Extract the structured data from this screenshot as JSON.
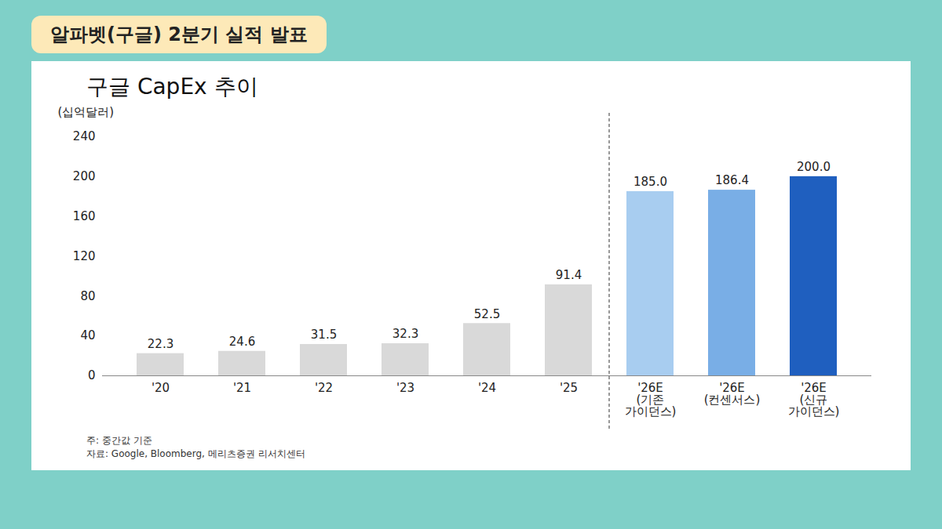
{
  "chart_data": {
    "type": "bar",
    "header": "알파벳(구글) 2분기 실적 발표",
    "title": "구글 CapEx 추이",
    "y_label": "(십억달러)",
    "categories": [
      "'20",
      "'21",
      "'22",
      "'23",
      "'24",
      "'25",
      "'26E (기존 가이던스)",
      "'26E (컨센서스)",
      "'26E (신규 가이던스)"
    ],
    "values": [
      22.3,
      24.6,
      31.5,
      32.3,
      52.5,
      91.4,
      185.0,
      186.4,
      200.0
    ],
    "value_labels": [
      "22.3",
      "24.6",
      "31.5",
      "32.3",
      "52.5",
      "91.4",
      "185.0",
      "186.4",
      "200.0"
    ],
    "colors": [
      "#d9d9d9",
      "#d9d9d9",
      "#d9d9d9",
      "#d9d9d9",
      "#d9d9d9",
      "#d9d9d9",
      "#a8cdf0",
      "#79aee6",
      "#1f5fbf"
    ],
    "ylim": [
      0,
      240
    ],
    "yticks": [
      0,
      40,
      80,
      120,
      160,
      200,
      240
    ],
    "grid": false,
    "data_labels": true,
    "annotations": [
      "주: 중간값 기준",
      "자료: Google, Bloomberg, 메리츠증권 리서치센터"
    ]
  }
}
